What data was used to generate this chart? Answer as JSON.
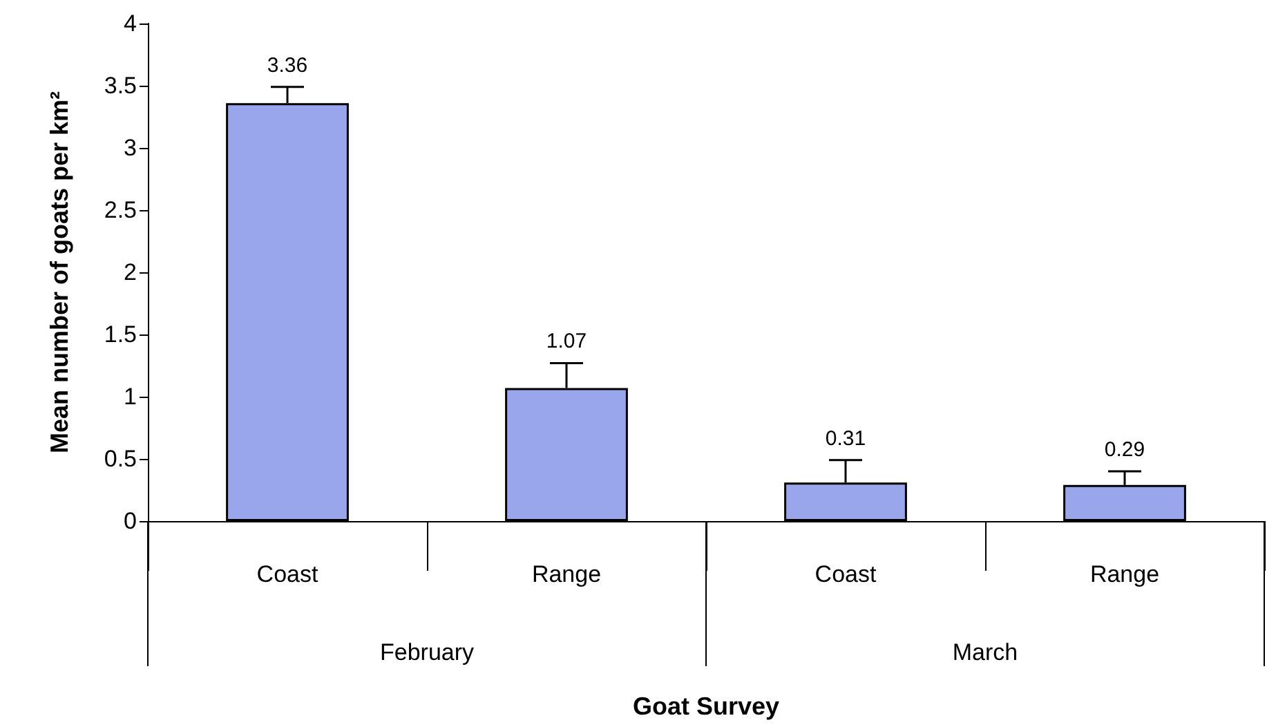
{
  "chart_data": {
    "type": "bar",
    "xlabel": "Goat Survey",
    "ylabel": "Mean number of goats per km²",
    "categories": [
      "Coast",
      "Range",
      "Coast",
      "Range"
    ],
    "values": [
      3.36,
      1.07,
      0.31,
      0.29
    ],
    "errors": [
      [
        3.36,
        3.49
      ],
      [
        1.07,
        1.27
      ],
      [
        0.31,
        0.49
      ],
      [
        0.29,
        0.4
      ]
    ],
    "color": "#9aa6ec",
    "data_labels": true,
    "ylim": [
      0,
      4
    ],
    "yticks": [
      0,
      0.5,
      1,
      1.5,
      2,
      2.5,
      3,
      3.5,
      4
    ],
    "annotations": [
      "February",
      "March"
    ]
  }
}
